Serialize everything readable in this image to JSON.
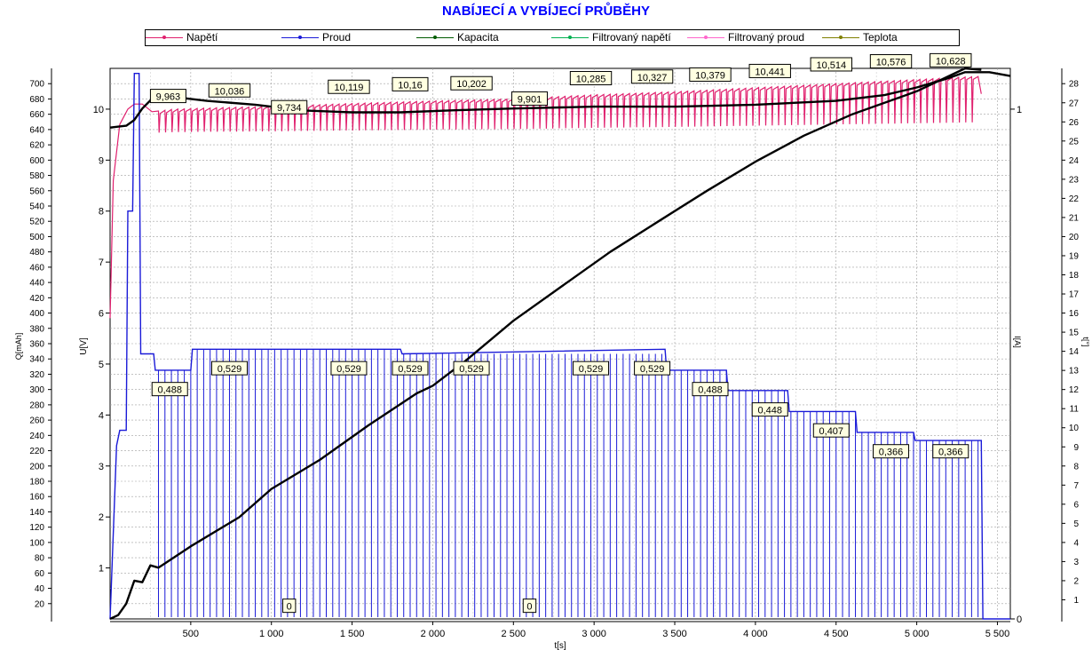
{
  "chart_data": {
    "type": "line",
    "title": "NABÍJECÍ A VYBÍJECÍ PRŮBĚHY",
    "xlabel": "t[s]",
    "ylabel_left_outer": "Q[mAh]",
    "ylabel_left_inner": "U[V]",
    "ylabel_right_inner": "I[A]",
    "ylabel_right_outer": "t[°]",
    "xlim": [
      0,
      5580
    ],
    "ylim_Q": [
      0,
      720
    ],
    "ylim_U": [
      0,
      10.8
    ],
    "ylim_I": [
      0,
      1.08
    ],
    "ylim_T": [
      0,
      28.8
    ],
    "x_ticks": [
      "500",
      "1 000",
      "1 500",
      "2 000",
      "2 500",
      "3 000",
      "3 500",
      "4 000",
      "4 500",
      "5 000",
      "5 500"
    ],
    "x_tick_values": [
      500,
      1000,
      1500,
      2000,
      2500,
      3000,
      3500,
      4000,
      4500,
      5000,
      5500
    ],
    "q_ticks": [
      20,
      40,
      60,
      80,
      100,
      120,
      140,
      160,
      180,
      200,
      220,
      240,
      260,
      280,
      300,
      320,
      340,
      360,
      380,
      400,
      420,
      440,
      460,
      480,
      500,
      520,
      540,
      560,
      580,
      600,
      620,
      640,
      660,
      680,
      700
    ],
    "u_ticks": [
      1,
      2,
      3,
      4,
      5,
      6,
      7,
      8,
      9,
      10
    ],
    "i_ticks": [
      0,
      1
    ],
    "t_ticks": [
      1,
      2,
      3,
      4,
      5,
      6,
      7,
      8,
      9,
      10,
      11,
      12,
      13,
      14,
      15,
      16,
      17,
      18,
      19,
      20,
      21,
      22,
      23,
      24,
      25,
      26,
      27,
      28
    ],
    "grid": true,
    "legend_position": "top",
    "legend": [
      {
        "name": "Napětí",
        "color": "#e0206e"
      },
      {
        "name": "Proud",
        "color": "#1a1ad8"
      },
      {
        "name": "Kapacita",
        "color": "#005c00"
      },
      {
        "name": "Filtrovaný napětí",
        "color": "#00b050"
      },
      {
        "name": "Filtrovaný proud",
        "color": "#ff66cc"
      },
      {
        "name": "Teplota",
        "color": "#808000"
      }
    ],
    "series": [
      {
        "name": "Napětí",
        "axis": "U",
        "color": "#e0206e",
        "x": [
          0,
          20,
          60,
          110,
          150,
          200,
          260,
          400,
          700,
          1000,
          1500,
          2000,
          2500,
          3000,
          3500,
          4000,
          4500,
          5000,
          5300,
          5380,
          5400
        ],
        "y": [
          5.9,
          8.6,
          9.7,
          10.0,
          10.1,
          10.1,
          9.95,
          10.0,
          10.03,
          10.05,
          10.11,
          10.16,
          10.2,
          10.28,
          10.34,
          10.42,
          10.5,
          10.58,
          10.63,
          10.64,
          10.3
        ],
        "drop_to": 9.55,
        "drop_spacing_s": 40
      },
      {
        "name": "Proud",
        "axis": "I",
        "color": "#1a1ad8",
        "x": [
          0,
          40,
          60,
          100,
          110,
          140,
          150,
          180,
          190,
          270,
          280,
          500,
          510,
          1800,
          1810,
          3440,
          3450,
          3820,
          3830,
          4200,
          4210,
          4620,
          4630,
          4980,
          4990,
          5400,
          5410,
          5580
        ],
        "y": [
          0,
          0.34,
          0.37,
          0.37,
          0.8,
          0.8,
          1.07,
          1.07,
          0.52,
          0.52,
          0.488,
          0.488,
          0.529,
          0.529,
          0.52,
          0.529,
          0.488,
          0.488,
          0.448,
          0.448,
          0.407,
          0.407,
          0.366,
          0.366,
          0.35,
          0.35,
          0,
          0
        ]
      },
      {
        "name": "Kapacita",
        "axis": "Q",
        "color": "#000000",
        "x": [
          0,
          50,
          100,
          150,
          200,
          250,
          300,
          500,
          800,
          1000,
          1300,
          1600,
          1900,
          2000,
          2200,
          2500,
          2800,
          3100,
          3400,
          3700,
          4000,
          4300,
          4600,
          5000,
          5300,
          5400
        ],
        "y": [
          0,
          5,
          20,
          50,
          48,
          70,
          67,
          95,
          133,
          170,
          208,
          253,
          295,
          305,
          337,
          390,
          435,
          480,
          520,
          560,
          598,
          632,
          660,
          690,
          720,
          718
        ]
      },
      {
        "name": "Teplota",
        "axis": "T",
        "color": "#000000",
        "x": [
          0,
          100,
          150,
          200,
          270,
          400,
          600,
          900,
          1200,
          1500,
          1800,
          2100,
          2500,
          3000,
          3500,
          4000,
          4500,
          4800,
          5000,
          5200,
          5300,
          5450,
          5580
        ],
        "y": [
          25.7,
          25.8,
          26.1,
          26.7,
          27.3,
          27.3,
          27.1,
          26.9,
          26.6,
          26.5,
          26.5,
          26.6,
          26.7,
          26.8,
          26.8,
          26.9,
          27.1,
          27.4,
          27.8,
          28.3,
          28.6,
          28.6,
          28.4
        ]
      }
    ],
    "annotations_voltage": [
      {
        "x": 360,
        "y": 10.25,
        "text": "9,963"
      },
      {
        "x": 740,
        "y": 10.36,
        "text": "10,036"
      },
      {
        "x": 1110,
        "y": 10.03,
        "text": "9,734"
      },
      {
        "x": 1480,
        "y": 10.43,
        "text": "10,119"
      },
      {
        "x": 1860,
        "y": 10.48,
        "text": "10,16"
      },
      {
        "x": 2240,
        "y": 10.5,
        "text": "10,202"
      },
      {
        "x": 2600,
        "y": 10.2,
        "text": "9,901"
      },
      {
        "x": 2980,
        "y": 10.6,
        "text": "10,285"
      },
      {
        "x": 3360,
        "y": 10.63,
        "text": "10,327"
      },
      {
        "x": 3720,
        "y": 10.67,
        "text": "10,379"
      },
      {
        "x": 4090,
        "y": 10.74,
        "text": "10,441"
      },
      {
        "x": 4470,
        "y": 10.87,
        "text": "10,514"
      },
      {
        "x": 4840,
        "y": 10.93,
        "text": "10,576"
      },
      {
        "x": 5210,
        "y": 10.95,
        "text": "10,628"
      }
    ],
    "annotations_current": [
      {
        "x": 370,
        "y": 0.45,
        "text": "0,488"
      },
      {
        "x": 740,
        "y": 0.491,
        "text": "0,529"
      },
      {
        "x": 1480,
        "y": 0.491,
        "text": "0,529"
      },
      {
        "x": 1860,
        "y": 0.491,
        "text": "0,529"
      },
      {
        "x": 2240,
        "y": 0.491,
        "text": "0,529"
      },
      {
        "x": 2980,
        "y": 0.491,
        "text": "0,529"
      },
      {
        "x": 3360,
        "y": 0.491,
        "text": "0,529"
      },
      {
        "x": 3720,
        "y": 0.45,
        "text": "0,488"
      },
      {
        "x": 4090,
        "y": 0.41,
        "text": "0,448"
      },
      {
        "x": 4470,
        "y": 0.369,
        "text": "0,407"
      },
      {
        "x": 4840,
        "y": 0.328,
        "text": "0,366"
      },
      {
        "x": 5210,
        "y": 0.328,
        "text": "0,366"
      },
      {
        "x": 1110,
        "y": 0.025,
        "text": "0"
      },
      {
        "x": 2600,
        "y": 0.025,
        "text": "0"
      }
    ]
  }
}
